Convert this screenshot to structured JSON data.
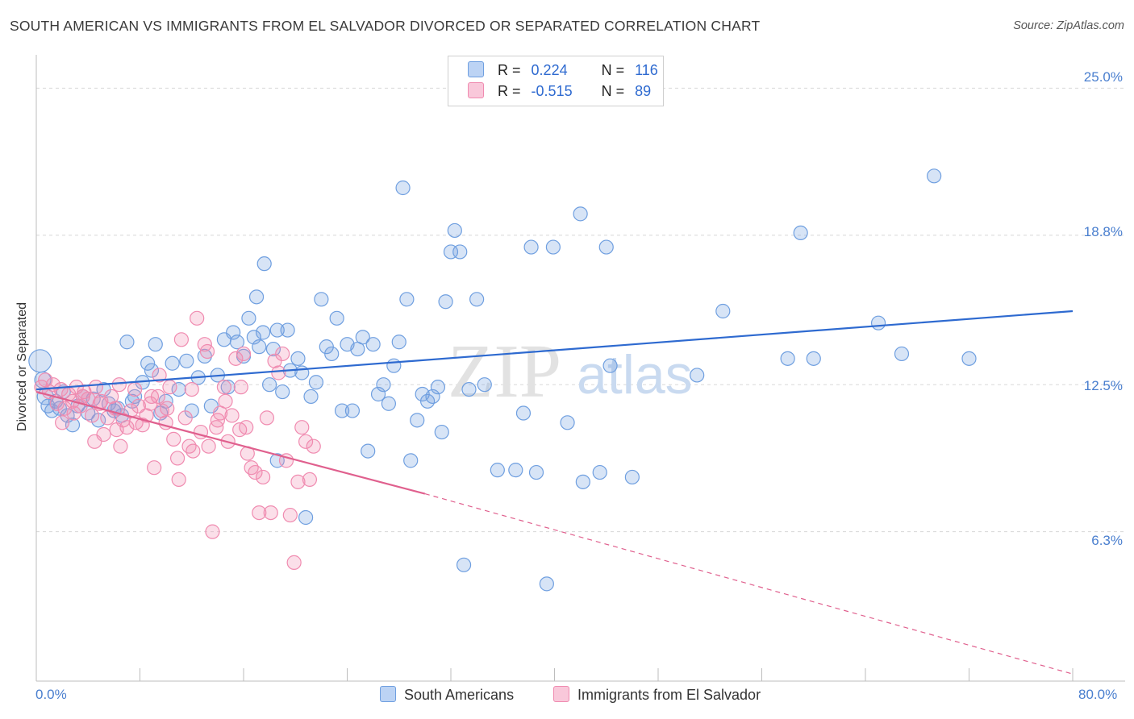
{
  "title": "SOUTH AMERICAN VS IMMIGRANTS FROM EL SALVADOR DIVORCED OR SEPARATED CORRELATION CHART",
  "source": "Source: ZipAtlas.com",
  "watermark": {
    "zip": "ZIP",
    "atlas": "atlas"
  },
  "legend": {
    "rows": [
      {
        "r_label": "R =",
        "r_value": "0.224",
        "n_label": "N =",
        "n_value": "116",
        "color": "#6f9fe0"
      },
      {
        "r_label": "R =",
        "r_value": "-0.515",
        "n_label": "N =",
        "n_value": "89",
        "color": "#f08bb0"
      }
    ]
  },
  "chart_data": {
    "type": "scatter",
    "title": "SOUTH AMERICAN VS IMMIGRANTS FROM EL SALVADOR DIVORCED OR SEPARATED CORRELATION CHART",
    "xlabel": "",
    "ylabel": "Divorced or Separated",
    "xlim": [
      0,
      80
    ],
    "ylim": [
      0,
      26
    ],
    "x_tick_labels": [
      "0.0%",
      "80.0%"
    ],
    "y_ticks": [
      6.3,
      12.5,
      18.8,
      25.0
    ],
    "y_tick_labels": [
      "6.3%",
      "12.5%",
      "18.8%",
      "25.0%"
    ],
    "grid": "horizontal dashed",
    "legend_position": "top-center",
    "series": [
      {
        "name": "South Americans",
        "color": "#6f9fe0",
        "line_color": "#2e6ad0",
        "trend": {
          "x0": 0,
          "y0": 12.3,
          "x1": 80,
          "y1": 15.6,
          "dashed_from": null
        },
        "points": [
          [
            0.3,
            13.5
          ],
          [
            0.5,
            12.7
          ],
          [
            0.7,
            12.0
          ],
          [
            0.9,
            11.6
          ],
          [
            1.2,
            11.4
          ],
          [
            1.5,
            11.8
          ],
          [
            1.8,
            11.5
          ],
          [
            2.1,
            12.2
          ],
          [
            2.4,
            11.2
          ],
          [
            2.8,
            10.8
          ],
          [
            3.2,
            11.6
          ],
          [
            3.6,
            12.0
          ],
          [
            4.0,
            11.3
          ],
          [
            4.4,
            11.9
          ],
          [
            4.8,
            11.0
          ],
          [
            5.2,
            12.3
          ],
          [
            5.6,
            11.7
          ],
          [
            6.0,
            11.4
          ],
          [
            6.3,
            11.5
          ],
          [
            6.6,
            11.2
          ],
          [
            7.0,
            14.3
          ],
          [
            7.4,
            11.8
          ],
          [
            7.6,
            12.0
          ],
          [
            8.2,
            12.6
          ],
          [
            8.6,
            13.4
          ],
          [
            8.9,
            13.1
          ],
          [
            9.2,
            14.2
          ],
          [
            9.6,
            11.3
          ],
          [
            10.0,
            11.8
          ],
          [
            10.5,
            13.4
          ],
          [
            11.0,
            12.3
          ],
          [
            11.6,
            13.5
          ],
          [
            12.0,
            11.4
          ],
          [
            12.5,
            12.8
          ],
          [
            13.0,
            13.7
          ],
          [
            13.5,
            11.6
          ],
          [
            14.0,
            12.9
          ],
          [
            14.5,
            14.4
          ],
          [
            14.8,
            12.4
          ],
          [
            15.2,
            14.7
          ],
          [
            15.5,
            14.3
          ],
          [
            16.0,
            13.7
          ],
          [
            16.4,
            15.3
          ],
          [
            16.8,
            14.5
          ],
          [
            17.2,
            14.1
          ],
          [
            17.5,
            14.7
          ],
          [
            18.0,
            12.5
          ],
          [
            18.3,
            14.0
          ],
          [
            18.6,
            14.8
          ],
          [
            19.0,
            12.2
          ],
          [
            19.4,
            14.8
          ],
          [
            17.0,
            16.2
          ],
          [
            17.6,
            17.6
          ],
          [
            18.6,
            9.3
          ],
          [
            19.6,
            13.1
          ],
          [
            20.2,
            13.6
          ],
          [
            20.5,
            13.0
          ],
          [
            20.8,
            6.9
          ],
          [
            21.2,
            12.0
          ],
          [
            21.6,
            12.6
          ],
          [
            22.0,
            16.1
          ],
          [
            22.4,
            14.1
          ],
          [
            22.8,
            13.8
          ],
          [
            23.2,
            15.3
          ],
          [
            23.6,
            11.4
          ],
          [
            24.0,
            14.2
          ],
          [
            24.4,
            11.4
          ],
          [
            24.8,
            14.0
          ],
          [
            25.2,
            14.5
          ],
          [
            25.6,
            9.7
          ],
          [
            26.0,
            14.2
          ],
          [
            26.4,
            12.1
          ],
          [
            26.8,
            12.5
          ],
          [
            27.2,
            11.7
          ],
          [
            27.6,
            13.3
          ],
          [
            28.0,
            14.3
          ],
          [
            28.3,
            20.8
          ],
          [
            28.6,
            16.1
          ],
          [
            28.9,
            9.3
          ],
          [
            29.4,
            11.0
          ],
          [
            29.8,
            12.1
          ],
          [
            30.2,
            11.8
          ],
          [
            30.6,
            12.0
          ],
          [
            31.0,
            12.4
          ],
          [
            31.3,
            10.5
          ],
          [
            31.6,
            16.0
          ],
          [
            32.0,
            18.1
          ],
          [
            32.3,
            19.0
          ],
          [
            32.7,
            18.1
          ],
          [
            33.0,
            4.9
          ],
          [
            33.4,
            12.3
          ],
          [
            34.0,
            16.1
          ],
          [
            34.6,
            12.5
          ],
          [
            35.6,
            8.9
          ],
          [
            37.0,
            8.9
          ],
          [
            37.6,
            11.3
          ],
          [
            38.2,
            18.3
          ],
          [
            38.6,
            8.8
          ],
          [
            39.4,
            4.1
          ],
          [
            39.9,
            18.3
          ],
          [
            41.0,
            10.9
          ],
          [
            42.0,
            19.7
          ],
          [
            42.2,
            8.4
          ],
          [
            43.5,
            8.8
          ],
          [
            44.0,
            18.3
          ],
          [
            46.0,
            8.6
          ],
          [
            44.3,
            13.3
          ],
          [
            51.0,
            12.9
          ],
          [
            53.0,
            15.6
          ],
          [
            58.0,
            13.6
          ],
          [
            59.0,
            18.9
          ],
          [
            65.0,
            15.1
          ],
          [
            66.8,
            13.8
          ],
          [
            72.0,
            13.6
          ],
          [
            60.0,
            13.6
          ],
          [
            69.3,
            21.3
          ]
        ]
      },
      {
        "name": "Immigrants from El Salvador",
        "color": "#f08bb0",
        "line_color": "#e0608e",
        "trend": {
          "x0": 0,
          "y0": 12.2,
          "x1": 30,
          "y1": 7.9,
          "dashed_from": 30,
          "dash_x1": 80,
          "dash_y1": 0.3
        },
        "points": [
          [
            0.4,
            12.4
          ],
          [
            0.7,
            12.7
          ],
          [
            1.0,
            12.2
          ],
          [
            1.3,
            12.5
          ],
          [
            1.6,
            11.7
          ],
          [
            1.9,
            12.3
          ],
          [
            2.2,
            11.5
          ],
          [
            2.5,
            12.1
          ],
          [
            2.8,
            11.8
          ],
          [
            3.1,
            12.4
          ],
          [
            3.4,
            11.6
          ],
          [
            3.7,
            12.2
          ],
          [
            4.0,
            11.9
          ],
          [
            4.3,
            11.2
          ],
          [
            4.6,
            12.4
          ],
          [
            4.9,
            11.7
          ],
          [
            5.2,
            10.4
          ],
          [
            5.5,
            11.1
          ],
          [
            5.8,
            12.0
          ],
          [
            6.1,
            11.5
          ],
          [
            6.4,
            12.5
          ],
          [
            6.7,
            11.0
          ],
          [
            7.0,
            10.7
          ],
          [
            7.3,
            11.4
          ],
          [
            7.6,
            12.3
          ],
          [
            7.9,
            11.6
          ],
          [
            8.2,
            10.8
          ],
          [
            8.5,
            11.2
          ],
          [
            8.8,
            11.7
          ],
          [
            9.1,
            9.0
          ],
          [
            9.4,
            12.0
          ],
          [
            9.7,
            11.4
          ],
          [
            10.0,
            10.9
          ],
          [
            10.3,
            12.4
          ],
          [
            10.6,
            10.2
          ],
          [
            10.9,
            9.4
          ],
          [
            11.2,
            14.4
          ],
          [
            11.5,
            11.1
          ],
          [
            11.8,
            9.9
          ],
          [
            12.1,
            9.7
          ],
          [
            12.4,
            15.3
          ],
          [
            12.7,
            10.5
          ],
          [
            13.0,
            14.2
          ],
          [
            13.3,
            9.9
          ],
          [
            13.6,
            6.3
          ],
          [
            13.9,
            10.7
          ],
          [
            14.2,
            11.3
          ],
          [
            14.5,
            12.4
          ],
          [
            14.8,
            10.1
          ],
          [
            15.1,
            11.2
          ],
          [
            15.4,
            13.6
          ],
          [
            15.7,
            10.6
          ],
          [
            16.0,
            13.8
          ],
          [
            16.3,
            9.6
          ],
          [
            16.6,
            9.0
          ],
          [
            16.9,
            8.8
          ],
          [
            17.2,
            7.1
          ],
          [
            17.5,
            8.6
          ],
          [
            17.8,
            11.1
          ],
          [
            18.1,
            7.1
          ],
          [
            18.4,
            13.5
          ],
          [
            18.7,
            13.0
          ],
          [
            19.0,
            13.8
          ],
          [
            19.3,
            9.3
          ],
          [
            19.6,
            7.0
          ],
          [
            19.9,
            5.0
          ],
          [
            20.2,
            8.4
          ],
          [
            20.5,
            10.7
          ],
          [
            20.8,
            10.1
          ],
          [
            21.1,
            8.5
          ],
          [
            21.4,
            9.9
          ],
          [
            3.6,
            12.0
          ],
          [
            5.0,
            11.8
          ],
          [
            6.5,
            9.9
          ],
          [
            8.9,
            12.0
          ],
          [
            10.1,
            11.5
          ],
          [
            12.0,
            12.3
          ],
          [
            13.2,
            13.9
          ],
          [
            14.0,
            11.0
          ],
          [
            15.8,
            12.4
          ],
          [
            2.0,
            10.9
          ],
          [
            4.5,
            10.1
          ],
          [
            7.7,
            10.9
          ],
          [
            9.5,
            12.9
          ],
          [
            16.2,
            10.7
          ],
          [
            11.0,
            8.5
          ],
          [
            14.6,
            11.8
          ],
          [
            2.9,
            11.3
          ],
          [
            6.2,
            10.6
          ]
        ]
      }
    ]
  }
}
